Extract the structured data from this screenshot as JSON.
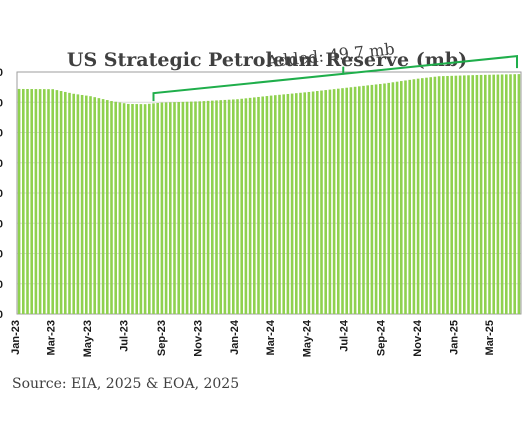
{
  "chart_data": {
    "type": "bar",
    "title": "US Strategic Petroleum Reserve  (mb)",
    "source": "Source: EIA, 2025 & EOA, 2025",
    "annotation": "Added: 49.7 mb",
    "ylim": [
      0,
      400
    ],
    "grid": true,
    "colors": {
      "bar": "#8fd14f",
      "bar_stroke": "#79bd3a",
      "bracket": "#1fae4b",
      "border": "#9e9e9e"
    },
    "tick_labels": [
      "Jan-23",
      "Mar-23",
      "May-23",
      "Jul-23",
      "Sep-23",
      "Nov-23",
      "Jan-24",
      "Mar-24",
      "May-24",
      "Jul-24",
      "Sep-24",
      "Nov-24",
      "Jan-25",
      "Mar-25"
    ],
    "x_range": [
      "2023-01-06",
      "2025-04-18"
    ],
    "frequency": "weekly",
    "series": [
      {
        "points": [
          [
            "2023-01-06",
            372.0
          ],
          [
            "2023-03-03",
            371.6
          ],
          [
            "2023-04-07",
            364.0
          ],
          [
            "2023-05-05",
            360.0
          ],
          [
            "2023-06-09",
            352.0
          ],
          [
            "2023-07-07",
            347.2
          ],
          [
            "2023-08-04",
            346.8
          ],
          [
            "2023-09-01",
            349.5
          ],
          [
            "2023-11-03",
            351.5
          ],
          [
            "2024-01-05",
            355.0
          ],
          [
            "2024-03-01",
            361.0
          ],
          [
            "2024-05-03",
            367.0
          ],
          [
            "2024-07-05",
            374.0
          ],
          [
            "2024-09-06",
            381.0
          ],
          [
            "2024-11-01",
            389.0
          ],
          [
            "2024-12-06",
            393.0
          ],
          [
            "2025-02-07",
            395.0
          ],
          [
            "2025-04-18",
            396.5
          ]
        ]
      }
    ]
  }
}
